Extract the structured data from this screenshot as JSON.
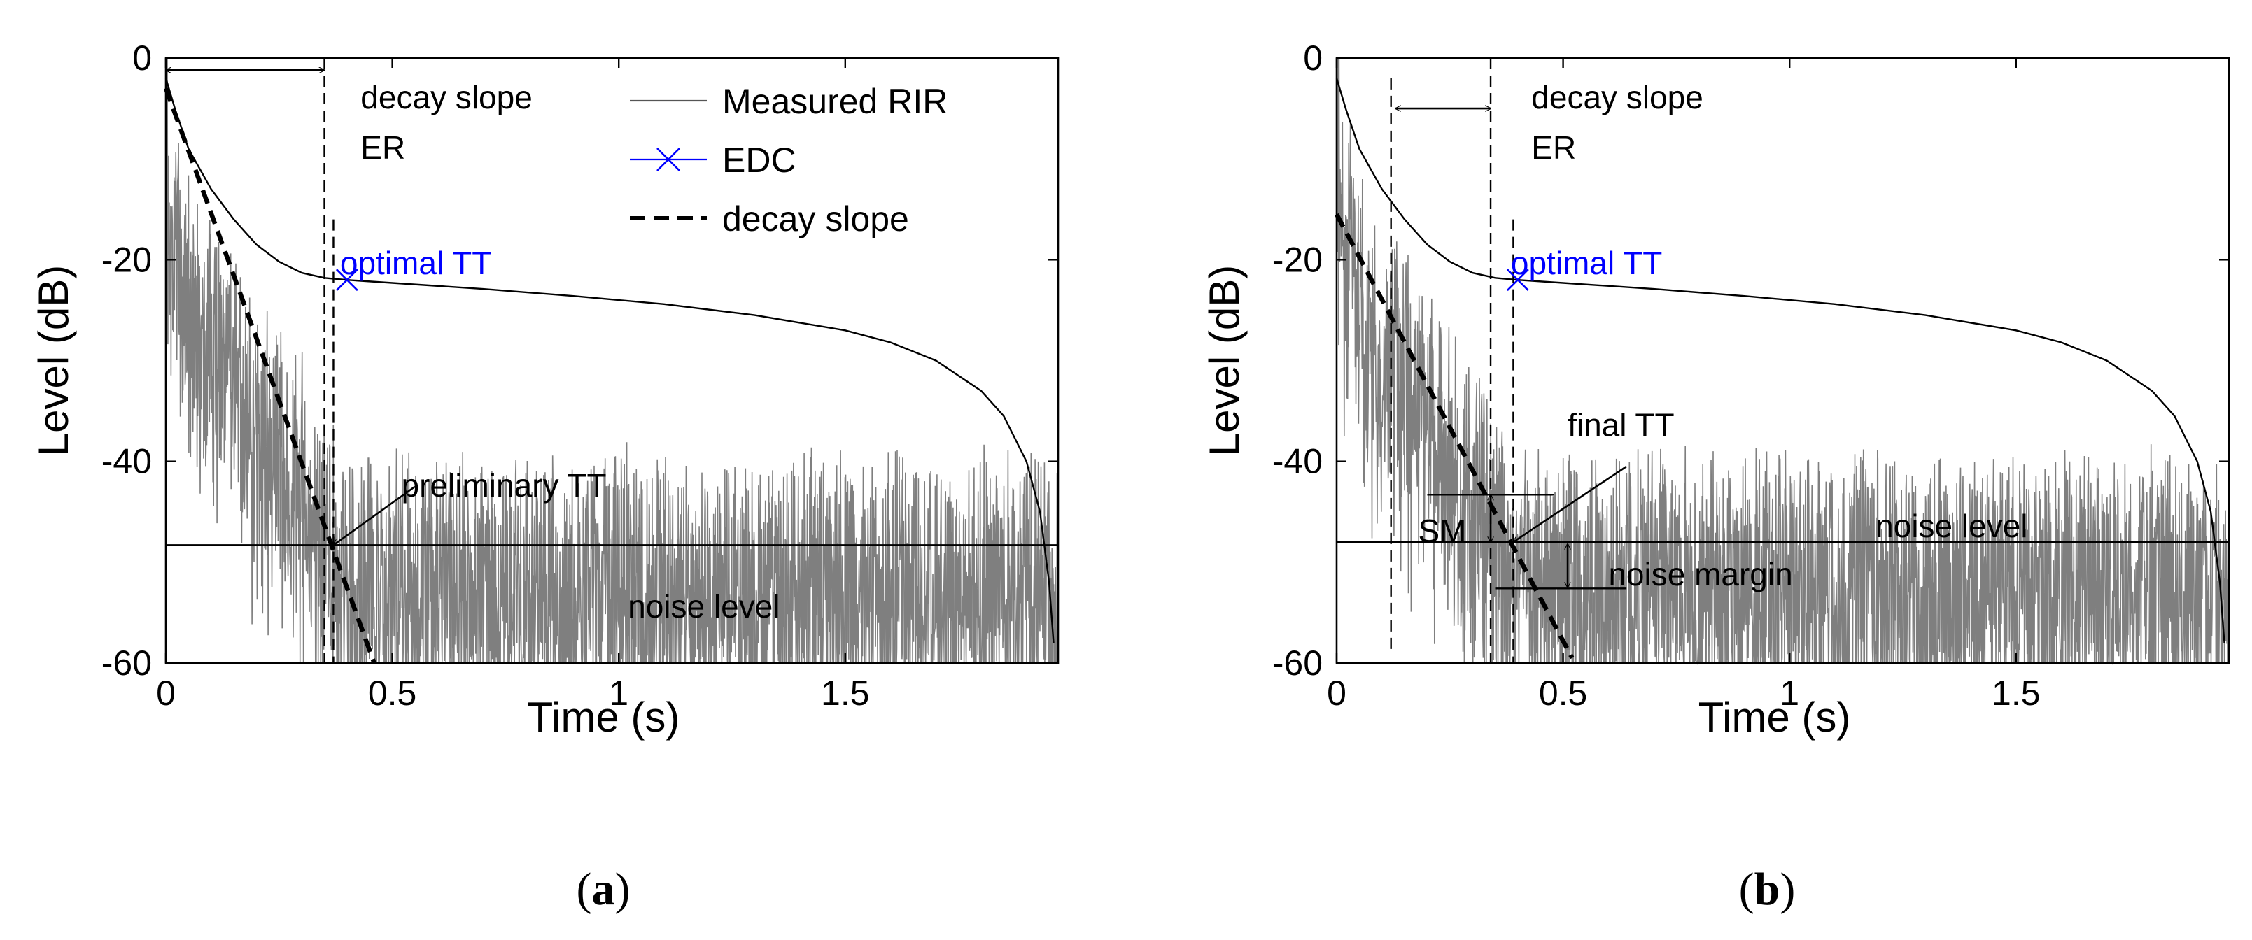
{
  "chart_data": [
    {
      "panel": "(a)",
      "panel_letter": "a",
      "type": "line",
      "xlabel": "Time (s)",
      "ylabel": "Level (dB)",
      "xlim": [
        0,
        1.97
      ],
      "ylim": [
        -60,
        0
      ],
      "xticks": [
        0,
        0.5,
        1,
        1.5
      ],
      "xtick_labels": [
        "0",
        "0.5",
        "1",
        "1.5"
      ],
      "yticks": [
        0,
        -20,
        -40,
        -60
      ],
      "ytick_labels": [
        "0",
        "-20",
        "-40",
        "-60"
      ],
      "grid": false,
      "legend": {
        "placement": "top-right",
        "entries": [
          "Measured RIR",
          "EDC",
          "decay slope"
        ]
      },
      "series": [
        {
          "name": "Measured RIR",
          "style": "gray-line",
          "color": "#7f7f7f",
          "noise_floor_db": -55,
          "noise_amplitude_db": 5,
          "envelope": {
            "x": [
              0,
              0.05,
              0.1,
              0.2,
              0.3,
              0.35,
              0.4
            ],
            "y": [
              -8,
              -22,
              -26,
              -33,
              -40,
              -45,
              -49
            ]
          }
        },
        {
          "name": "EDC",
          "style": "black-line",
          "color": "#000000",
          "x": [
            0,
            0.02,
            0.05,
            0.1,
            0.15,
            0.2,
            0.25,
            0.3,
            0.35,
            0.4,
            0.5,
            0.7,
            0.9,
            1.1,
            1.3,
            1.5,
            1.6,
            1.7,
            1.8,
            1.85,
            1.9,
            1.93,
            1.95,
            1.96
          ],
          "y": [
            -2,
            -5,
            -9,
            -13,
            -16,
            -18.5,
            -20.2,
            -21.3,
            -21.8,
            -22,
            -22.3,
            -22.9,
            -23.6,
            -24.4,
            -25.5,
            -27,
            -28.2,
            -30,
            -33,
            -35.5,
            -40,
            -45,
            -52,
            -58
          ]
        },
        {
          "name": "decay slope",
          "style": "dashed-thick",
          "color": "#000000",
          "x": [
            0,
            0.46
          ],
          "y": [
            -3,
            -60
          ]
        }
      ],
      "lines": [
        {
          "orient": "h",
          "y": -48.3,
          "x0": 0,
          "x1": 1.97,
          "style": "solid"
        },
        {
          "orient": "v",
          "x": 0.35,
          "y0": 0,
          "y1": -60,
          "style": "dashed"
        },
        {
          "orient": "v",
          "x": 0.37,
          "y0": -16,
          "y1": -60,
          "style": "dashed"
        }
      ],
      "edc_marker": {
        "x": 0.4,
        "y": -22,
        "label": "optimal TT",
        "color": "#0000ff"
      },
      "annotations": [
        {
          "id": "decay_slope_label",
          "text": "decay slope",
          "x": 0.43,
          "y": -5
        },
        {
          "id": "er_label",
          "text": "ER",
          "x": 0.43,
          "y": -10
        },
        {
          "id": "preliminary_tt_label",
          "text": "preliminary TT",
          "x": 0.52,
          "y": -43.5
        },
        {
          "id": "noise_level_label",
          "text": "noise level",
          "x": 1.02,
          "y": -55.5
        }
      ],
      "arrows": [
        {
          "id": "er_span",
          "x0": 0.0,
          "y0": -1.2,
          "x1": 0.35,
          "y1": -1.2,
          "heads": "both"
        },
        {
          "id": "prelim_tt_pointer",
          "x0": 0.55,
          "y0": -42.5,
          "x1": 0.37,
          "y1": -48.3,
          "heads": "end"
        }
      ]
    },
    {
      "panel": "(b)",
      "panel_letter": "b",
      "type": "line",
      "xlabel": "Time (s)",
      "ylabel": "Level (dB)",
      "xlim": [
        0,
        1.97
      ],
      "ylim": [
        -60,
        0
      ],
      "xticks": [
        0,
        0.5,
        1,
        1.5
      ],
      "xtick_labels": [
        "0",
        "0.5",
        "1",
        "1.5"
      ],
      "yticks": [
        0,
        -20,
        -40,
        -60
      ],
      "ytick_labels": [
        "0",
        "-20",
        "-40",
        "-60"
      ],
      "grid": false,
      "series": [
        {
          "name": "Measured RIR",
          "style": "gray-line",
          "color": "#7f7f7f",
          "noise_floor_db": -54,
          "noise_amplitude_db": 5,
          "envelope": {
            "x": [
              0,
              0.05,
              0.1,
              0.2,
              0.3,
              0.35,
              0.4
            ],
            "y": [
              -8,
              -22,
              -26,
              -33,
              -40,
              -45,
              -49
            ]
          }
        },
        {
          "name": "EDC",
          "style": "black-line",
          "color": "#000000",
          "x": [
            0,
            0.02,
            0.05,
            0.1,
            0.15,
            0.2,
            0.25,
            0.3,
            0.35,
            0.4,
            0.5,
            0.7,
            0.9,
            1.1,
            1.3,
            1.5,
            1.6,
            1.7,
            1.8,
            1.85,
            1.9,
            1.93,
            1.95,
            1.96
          ],
          "y": [
            -2,
            -5,
            -9,
            -13,
            -16,
            -18.5,
            -20.2,
            -21.3,
            -21.8,
            -22,
            -22.3,
            -22.9,
            -23.6,
            -24.4,
            -25.5,
            -27,
            -28.2,
            -30,
            -33,
            -35.5,
            -40,
            -45,
            -52,
            -58
          ]
        },
        {
          "name": "decay slope",
          "style": "dashed-thick",
          "color": "#000000",
          "x": [
            0,
            0.52
          ],
          "y": [
            -15.5,
            -59.5
          ]
        }
      ],
      "lines": [
        {
          "orient": "h",
          "y": -48,
          "x0": 0,
          "x1": 1.97,
          "style": "solid"
        },
        {
          "orient": "h",
          "y": -43.3,
          "x0": 0.2,
          "x1": 0.48,
          "style": "solid"
        },
        {
          "orient": "h",
          "y": -52.6,
          "x0": 0.35,
          "x1": 0.64,
          "style": "solid"
        },
        {
          "orient": "v",
          "x": 0.12,
          "y0": -2,
          "y1": -59,
          "style": "dashed"
        },
        {
          "orient": "v",
          "x": 0.34,
          "y0": 0,
          "y1": -60,
          "style": "dashed"
        },
        {
          "orient": "v",
          "x": 0.39,
          "y0": -16,
          "y1": -60,
          "style": "dashed"
        }
      ],
      "edc_marker": {
        "x": 0.4,
        "y": -22,
        "label": "optimal TT",
        "color": "#0000ff"
      },
      "annotations": [
        {
          "id": "decay_slope_label",
          "text": "decay slope",
          "x": 0.43,
          "y": -5
        },
        {
          "id": "er_label",
          "text": "ER",
          "x": 0.43,
          "y": -10
        },
        {
          "id": "final_tt_label",
          "text": "final TT",
          "x": 0.51,
          "y": -37.5
        },
        {
          "id": "sm_label",
          "text": "SM",
          "x": 0.18,
          "y": -48
        },
        {
          "id": "noise_level_label",
          "text": "noise level",
          "x": 1.19,
          "y": -47.5
        },
        {
          "id": "noise_margin_label",
          "text": "noise margin",
          "x": 0.6,
          "y": -52.3
        }
      ],
      "arrows": [
        {
          "id": "er_span",
          "x0": 0.13,
          "y0": -5,
          "x1": 0.34,
          "y1": -5,
          "heads": "both"
        },
        {
          "id": "final_tt_pointer",
          "x0": 0.64,
          "y0": -40.5,
          "x1": 0.39,
          "y1": -48,
          "heads": "end"
        },
        {
          "id": "sm_span",
          "x0": 0.34,
          "y0": -43.3,
          "x1": 0.34,
          "y1": -48,
          "heads": "both"
        },
        {
          "id": "noise_margin_span",
          "x0": 0.51,
          "y0": -48.2,
          "x1": 0.51,
          "y1": -52.5,
          "heads": "both"
        }
      ]
    }
  ]
}
